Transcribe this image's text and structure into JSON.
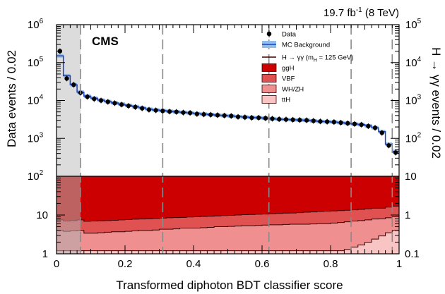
{
  "chart_data": {
    "type": "bar",
    "experiment": "CMS",
    "luminosity": {
      "value": "19.7 fb",
      "sup": "-1",
      "energy": " (8 TeV)"
    },
    "xlabel": "Transformed diphoton BDT classifier score",
    "ylabel_left": "Data events / 0.02",
    "ylabel_right": "H → γγ events / 0.02",
    "xlim": [
      0,
      1
    ],
    "x_ticks": [
      "0",
      "0.2",
      "0.4",
      "0.6",
      "0.8",
      "1"
    ],
    "category_boundaries": [
      0.07,
      0.31,
      0.62,
      0.86,
      0.98
    ],
    "excluded_region": [
      0,
      0.07
    ],
    "top_panel": {
      "scale": "log",
      "left_ylim": [
        100,
        1000000
      ],
      "right_ylim": [
        10,
        100000
      ],
      "left_ticks": [
        {
          "base": "10",
          "exp": "2"
        },
        {
          "base": "10",
          "exp": "3"
        },
        {
          "base": "10",
          "exp": "4"
        },
        {
          "base": "10",
          "exp": "5"
        },
        {
          "base": "10",
          "exp": "6"
        }
      ],
      "right_ticks": [
        {
          "base": "10",
          "exp": "2"
        },
        {
          "base": "10",
          "exp": "3"
        },
        {
          "base": "10",
          "exp": "4"
        },
        {
          "base": "10",
          "exp": "5"
        }
      ],
      "data": {
        "x": [
          0.01,
          0.03,
          0.05,
          0.07,
          0.09,
          0.11,
          0.13,
          0.15,
          0.17,
          0.19,
          0.21,
          0.23,
          0.25,
          0.27,
          0.29,
          0.31,
          0.33,
          0.35,
          0.37,
          0.39,
          0.41,
          0.43,
          0.45,
          0.47,
          0.49,
          0.51,
          0.53,
          0.55,
          0.57,
          0.59,
          0.61,
          0.63,
          0.65,
          0.67,
          0.69,
          0.71,
          0.73,
          0.75,
          0.77,
          0.79,
          0.81,
          0.83,
          0.85,
          0.87,
          0.89,
          0.91,
          0.93,
          0.95,
          0.97,
          0.99
        ],
        "y": [
          200000,
          38000,
          26000,
          16000,
          12500,
          11000,
          10000,
          9200,
          8500,
          7800,
          7200,
          6700,
          6200,
          5700,
          5500,
          5300,
          5100,
          5000,
          4800,
          4700,
          4400,
          4300,
          4200,
          4100,
          4000,
          3900,
          3700,
          3600,
          3500,
          3500,
          3400,
          3300,
          3200,
          3150,
          3100,
          3050,
          3000,
          2900,
          2800,
          2750,
          2700,
          2600,
          2500,
          2400,
          2300,
          2100,
          1900,
          1400,
          650,
          420
        ]
      },
      "mc_background": {
        "edges": [
          0.0,
          0.02,
          0.04,
          0.06,
          0.08,
          0.1,
          0.12,
          0.14,
          0.16,
          0.18,
          0.2,
          0.22,
          0.24,
          0.26,
          0.28,
          0.3,
          0.32,
          0.34,
          0.36,
          0.38,
          0.4,
          0.42,
          0.44,
          0.46,
          0.48,
          0.5,
          0.52,
          0.54,
          0.56,
          0.58,
          0.6,
          0.62,
          0.64,
          0.66,
          0.68,
          0.7,
          0.72,
          0.74,
          0.76,
          0.78,
          0.8,
          0.82,
          0.84,
          0.86,
          0.88,
          0.9,
          0.92,
          0.94,
          0.96,
          0.98,
          1.0
        ],
        "values": [
          150000,
          45000,
          26000,
          16500,
          13000,
          11500,
          10200,
          9400,
          8600,
          8000,
          7400,
          6900,
          6400,
          5900,
          5600,
          5400,
          5200,
          5000,
          4850,
          4700,
          4500,
          4350,
          4250,
          4100,
          4000,
          3900,
          3750,
          3650,
          3550,
          3500,
          3400,
          3300,
          3200,
          3150,
          3100,
          3050,
          3000,
          2900,
          2800,
          2750,
          2700,
          2600,
          2500,
          2400,
          2300,
          2150,
          1900,
          1500,
          700,
          450
        ]
      }
    },
    "bottom_panel": {
      "scale": "log",
      "left_ylim": [
        1,
        100
      ],
      "right_ylim": [
        0.1,
        10
      ],
      "left_ticks": [
        "1",
        "10",
        "10^2"
      ],
      "right_ticks": [
        "0.1",
        "1",
        "10"
      ],
      "signal_unit_scale": 10,
      "stack_order": [
        "ttH",
        "WH/ZH",
        "VBF",
        "ggH"
      ],
      "total_top": 100,
      "edges": [
        0.0,
        0.02,
        0.04,
        0.06,
        0.08,
        0.1,
        0.12,
        0.14,
        0.16,
        0.18,
        0.2,
        0.22,
        0.24,
        0.26,
        0.28,
        0.3,
        0.32,
        0.34,
        0.36,
        0.38,
        0.4,
        0.42,
        0.44,
        0.46,
        0.48,
        0.5,
        0.52,
        0.54,
        0.56,
        0.58,
        0.6,
        0.62,
        0.64,
        0.66,
        0.68,
        0.7,
        0.72,
        0.74,
        0.76,
        0.78,
        0.8,
        0.82,
        0.84,
        0.86,
        0.88,
        0.9,
        0.92,
        0.94,
        0.96,
        0.98,
        1.0
      ],
      "ttH_top": [
        1.2,
        1.2,
        1.2,
        1.2,
        1.2,
        1.2,
        1.2,
        1.2,
        1.2,
        1.2,
        1.2,
        1.2,
        1.2,
        1.2,
        1.2,
        1.2,
        1.2,
        1.2,
        1.2,
        1.2,
        1.2,
        1.2,
        1.2,
        1.2,
        1.2,
        1.2,
        1.2,
        1.2,
        1.2,
        1.2,
        1.2,
        1.2,
        1.2,
        1.2,
        1.2,
        1.2,
        1.2,
        1.2,
        1.2,
        1.2,
        1.2,
        1.2,
        1.3,
        1.5,
        1.7,
        2.0,
        2.4,
        2.9,
        3.5,
        4.0
      ],
      "whzh_top": [
        4.0,
        3.8,
        3.9,
        4.0,
        3.4,
        3.4,
        3.5,
        3.6,
        3.7,
        3.7,
        3.8,
        3.9,
        4.0,
        4.0,
        4.1,
        4.3,
        4.3,
        4.4,
        4.6,
        4.6,
        4.6,
        4.7,
        4.8,
        5.0,
        5.0,
        5.1,
        5.2,
        5.3,
        5.3,
        5.4,
        5.5,
        5.6,
        5.6,
        5.7,
        5.8,
        5.8,
        5.8,
        5.9,
        6.0,
        6.0,
        6.2,
        6.4,
        6.7,
        7.0,
        7.2,
        7.5,
        7.9,
        8.0,
        8.5,
        9.0
      ],
      "vbf_top": [
        7.5,
        7.0,
        7.2,
        7.5,
        6.9,
        7.0,
        7.1,
        7.2,
        7.3,
        7.5,
        7.6,
        7.8,
        7.9,
        8.0,
        8.1,
        8.3,
        8.5,
        8.6,
        8.7,
        8.9,
        9.0,
        9.2,
        9.3,
        9.5,
        9.7,
        9.8,
        10.0,
        10.2,
        10.3,
        10.5,
        10.6,
        10.8,
        11.0,
        11.2,
        11.3,
        11.5,
        11.8,
        12.0,
        12.3,
        12.5,
        12.8,
        13.0,
        13.3,
        13.6,
        14.0,
        14.5,
        15.0,
        15.0,
        16.0,
        17.0
      ]
    },
    "legend": [
      {
        "label": "Data",
        "type": "marker"
      },
      {
        "label": "MC Background",
        "type": "band"
      },
      {
        "label": "H → γγ (m",
        "sub": "H",
        "tail": " = 125 GeV)",
        "type": "line"
      },
      {
        "label": "ggH",
        "type": "box",
        "color": "#cc0000"
      },
      {
        "label": "VBF",
        "type": "box",
        "color": "#e05252"
      },
      {
        "label": "WH/ZH",
        "type": "box",
        "color": "#f08f8f"
      },
      {
        "label": "ttH",
        "type": "box",
        "color": "#f8c4c4"
      }
    ],
    "colors": {
      "ggH": "#cc0000",
      "VBF": "#e05252",
      "WH/ZH": "#f08f8f",
      "ttH": "#f8c4c4",
      "mc_line": "#1f3fbf",
      "mc_band": "#8fbfe8",
      "excluded": "#dcdcdc",
      "boundary": "#8a8a8a"
    }
  }
}
